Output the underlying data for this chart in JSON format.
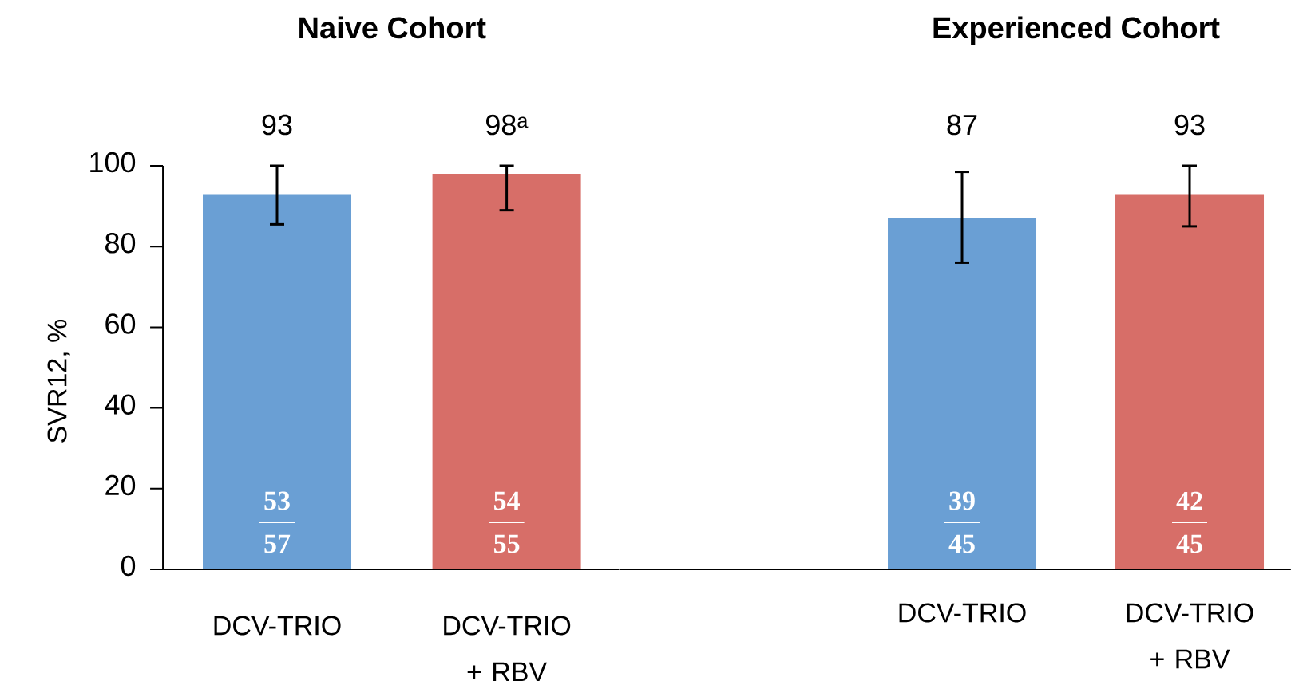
{
  "chart_data": [
    {
      "type": "bar",
      "title": "Naive Cohort",
      "ylabel": "SVR12, %",
      "categories": [
        "DCV-TRIO",
        "DCV-TRIO + RBV"
      ],
      "values": [
        93,
        98
      ],
      "colors": [
        "#6a9fd4",
        "#d76e68"
      ],
      "errors": [
        [
          85.5,
          100
        ],
        [
          89,
          100
        ]
      ],
      "value_labels": [
        "93",
        "98$^{a}$"
      ],
      "annotations": [
        "53",
        "57",
        "54",
        "55"
      ],
      "ylim": [
        0,
        100
      ],
      "yticks": [
        0,
        20,
        40,
        60,
        80,
        100
      ]
    },
    {
      "type": "bar",
      "title": "Experienced Cohort",
      "categories": [
        "DCV-TRIO",
        "DCV-TRIO + RBV"
      ],
      "values": [
        87,
        93
      ],
      "colors": [
        "#6a9fd4",
        "#d76e68"
      ],
      "errors": [
        [
          76,
          98.5
        ],
        [
          85,
          100
        ]
      ],
      "value_labels": [
        "87",
        "93"
      ],
      "annotations": [
        "39",
        "45",
        "42",
        "45"
      ],
      "ylim": [
        0,
        100
      ],
      "yticks": [
        0,
        20,
        40,
        60,
        80,
        100
      ],
      "tick_labels": "x"
    }
  ]
}
